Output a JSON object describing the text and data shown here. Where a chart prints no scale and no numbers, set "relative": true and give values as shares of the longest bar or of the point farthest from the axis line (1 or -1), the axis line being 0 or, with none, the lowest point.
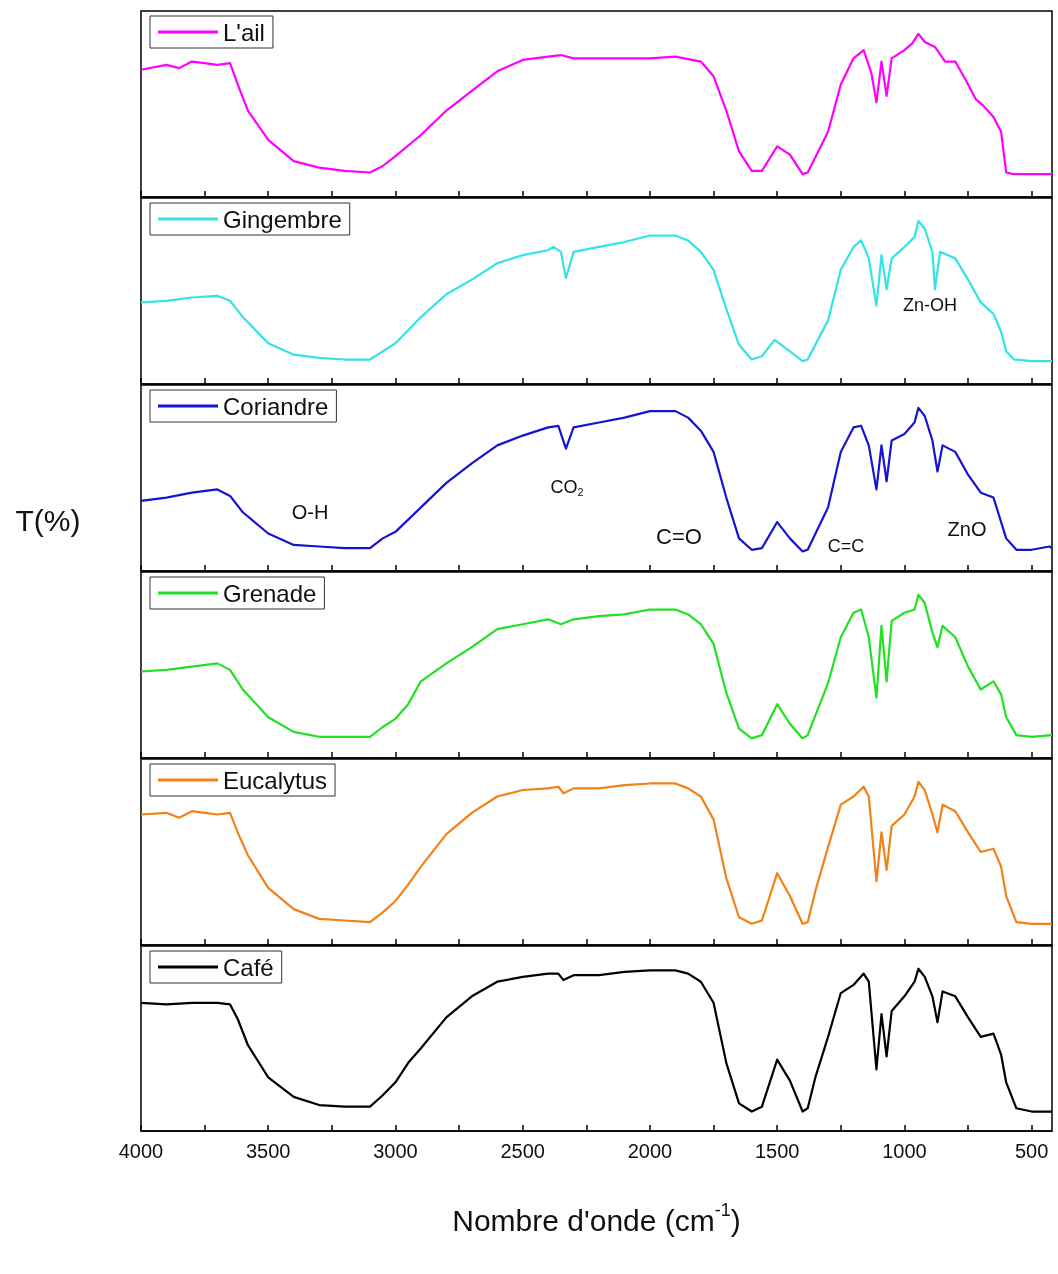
{
  "chart_data": [
    {
      "type": "line",
      "relative": true,
      "legend": "top left",
      "grid": false,
      "tick_labels": false,
      "xlim": [
        4000,
        420
      ],
      "xticks": [
        4000,
        {
          "value": 3750,
          "label": null
        },
        3500,
        {
          "value": 3250,
          "label": null
        },
        3000,
        {
          "value": 2750,
          "label": null
        },
        2500,
        {
          "value": 2250,
          "label": null
        },
        2000,
        {
          "value": 1750,
          "label": null
        },
        1500,
        {
          "value": 1250,
          "label": null
        },
        1000,
        {
          "value": 750,
          "label": null
        },
        500
      ],
      "x": [
        4000,
        3900,
        3850,
        3800,
        3750,
        3700,
        3650,
        3620,
        3580,
        3500,
        3400,
        3300,
        3200,
        3100,
        3050,
        3000,
        2900,
        2800,
        2700,
        2600,
        2500,
        2400,
        2350,
        2300,
        2200,
        2100,
        2000,
        1900,
        1800,
        1750,
        1700,
        1650,
        1600,
        1560,
        1500,
        1450,
        1400,
        1380,
        1300,
        1250,
        1200,
        1160,
        1130,
        1110,
        1090,
        1070,
        1050,
        1000,
        970,
        945,
        920,
        880,
        840,
        800,
        760,
        720,
        690,
        650,
        620,
        600,
        570,
        500,
        420
      ],
      "series": [
        {
          "name": "L'ail",
          "color": "#ff00ff",
          "values": [
            0.78,
            0.81,
            0.79,
            0.83,
            0.82,
            0.81,
            0.82,
            0.69,
            0.53,
            0.35,
            0.22,
            0.18,
            0.16,
            0.15,
            0.19,
            0.25,
            0.38,
            0.53,
            0.65,
            0.77,
            0.84,
            0.86,
            0.87,
            0.85,
            0.85,
            0.85,
            0.85,
            0.86,
            0.83,
            0.74,
            0.53,
            0.28,
            0.16,
            0.16,
            0.31,
            0.26,
            0.14,
            0.15,
            0.4,
            0.69,
            0.85,
            0.9,
            0.76,
            0.58,
            0.83,
            0.62,
            0.85,
            0.9,
            0.94,
            1,
            0.95,
            0.92,
            0.83,
            0.83,
            0.72,
            0.6,
            0.56,
            0.49,
            0.4,
            0.15,
            0.14,
            0.14,
            0.14
          ]
        }
      ]
    },
    {
      "type": "line",
      "relative": true,
      "legend": "top left",
      "grid": false,
      "tick_labels": false,
      "xlim": [
        4000,
        420
      ],
      "xticks": [
        4000,
        {
          "value": 3750,
          "label": null
        },
        3500,
        {
          "value": 3250,
          "label": null
        },
        3000,
        {
          "value": 2750,
          "label": null
        },
        2500,
        {
          "value": 2250,
          "label": null
        },
        2000,
        {
          "value": 1750,
          "label": null
        },
        1500,
        {
          "value": 1250,
          "label": null
        },
        1000,
        {
          "value": 750,
          "label": null
        },
        500
      ],
      "annotations": [
        "Zn-OH"
      ],
      "x": [
        4000,
        3900,
        3800,
        3700,
        3650,
        3600,
        3500,
        3400,
        3300,
        3200,
        3100,
        3050,
        3000,
        2900,
        2800,
        2700,
        2600,
        2500,
        2400,
        2380,
        2350,
        2330,
        2300,
        2200,
        2100,
        2000,
        1900,
        1850,
        1800,
        1750,
        1700,
        1650,
        1600,
        1560,
        1510,
        1450,
        1400,
        1380,
        1300,
        1250,
        1200,
        1170,
        1140,
        1110,
        1090,
        1070,
        1050,
        1000,
        960,
        945,
        920,
        890,
        880,
        860,
        800,
        750,
        700,
        650,
        620,
        600,
        570,
        500,
        420
      ],
      "series": [
        {
          "name": "Gingembre",
          "color": "#33e3e6",
          "values": [
            0.5,
            0.51,
            0.53,
            0.54,
            0.51,
            0.41,
            0.25,
            0.18,
            0.16,
            0.15,
            0.15,
            0.2,
            0.25,
            0.41,
            0.55,
            0.64,
            0.74,
            0.79,
            0.82,
            0.84,
            0.81,
            0.65,
            0.81,
            0.84,
            0.87,
            0.91,
            0.91,
            0.88,
            0.81,
            0.7,
            0.46,
            0.24,
            0.15,
            0.17,
            0.27,
            0.2,
            0.14,
            0.15,
            0.39,
            0.7,
            0.84,
            0.88,
            0.77,
            0.48,
            0.79,
            0.58,
            0.77,
            0.84,
            0.9,
            1,
            0.95,
            0.81,
            0.58,
            0.81,
            0.77,
            0.64,
            0.5,
            0.43,
            0.32,
            0.2,
            0.15,
            0.14,
            0.14
          ]
        }
      ]
    },
    {
      "type": "line",
      "relative": true,
      "legend": "top left",
      "grid": false,
      "tick_labels": false,
      "ylabel": "T(%)",
      "xlim": [
        4000,
        420
      ],
      "xticks": [
        4000,
        {
          "value": 3750,
          "label": null
        },
        3500,
        {
          "value": 3250,
          "label": null
        },
        3000,
        {
          "value": 2750,
          "label": null
        },
        2500,
        {
          "value": 2250,
          "label": null
        },
        2000,
        {
          "value": 1750,
          "label": null
        },
        1500,
        {
          "value": 1250,
          "label": null
        },
        1000,
        {
          "value": 750,
          "label": null
        },
        500
      ],
      "annotations": [
        "O-H",
        "CO$_{2}$",
        "C=O",
        "C=C",
        "ZnO"
      ],
      "x": [
        4000,
        3900,
        3800,
        3700,
        3650,
        3600,
        3500,
        3400,
        3300,
        3200,
        3100,
        3050,
        3000,
        2900,
        2800,
        2700,
        2600,
        2500,
        2400,
        2360,
        2330,
        2300,
        2200,
        2100,
        2000,
        1900,
        1850,
        1800,
        1750,
        1700,
        1650,
        1600,
        1560,
        1500,
        1450,
        1400,
        1380,
        1300,
        1250,
        1200,
        1170,
        1140,
        1110,
        1090,
        1070,
        1050,
        1000,
        960,
        945,
        920,
        890,
        870,
        850,
        800,
        750,
        700,
        650,
        620,
        600,
        560,
        500,
        430,
        420
      ],
      "series": [
        {
          "name": "Coriandre",
          "color": "#1414d2",
          "values": [
            0.43,
            0.45,
            0.48,
            0.5,
            0.46,
            0.36,
            0.23,
            0.16,
            0.15,
            0.14,
            0.14,
            0.2,
            0.24,
            0.39,
            0.54,
            0.66,
            0.77,
            0.83,
            0.88,
            0.89,
            0.75,
            0.88,
            0.91,
            0.94,
            0.98,
            0.98,
            0.94,
            0.86,
            0.73,
            0.45,
            0.2,
            0.13,
            0.14,
            0.3,
            0.2,
            0.12,
            0.13,
            0.39,
            0.73,
            0.88,
            0.89,
            0.77,
            0.5,
            0.77,
            0.55,
            0.8,
            0.84,
            0.91,
            1,
            0.95,
            0.8,
            0.61,
            0.77,
            0.73,
            0.59,
            0.48,
            0.45,
            0.3,
            0.2,
            0.13,
            0.13,
            0.15,
            0.14
          ]
        }
      ]
    },
    {
      "type": "line",
      "relative": true,
      "legend": "top left",
      "grid": false,
      "tick_labels": false,
      "xlim": [
        4000,
        420
      ],
      "xticks": [
        4000,
        {
          "value": 3750,
          "label": null
        },
        3500,
        {
          "value": 3250,
          "label": null
        },
        3000,
        {
          "value": 2750,
          "label": null
        },
        2500,
        {
          "value": 2250,
          "label": null
        },
        2000,
        {
          "value": 1750,
          "label": null
        },
        1500,
        {
          "value": 1250,
          "label": null
        },
        1000,
        {
          "value": 750,
          "label": null
        },
        500
      ],
      "x": [
        4000,
        3900,
        3800,
        3700,
        3650,
        3600,
        3500,
        3400,
        3300,
        3200,
        3100,
        3050,
        3000,
        2950,
        2900,
        2800,
        2700,
        2600,
        2500,
        2400,
        2350,
        2300,
        2200,
        2100,
        2000,
        1900,
        1850,
        1800,
        1750,
        1700,
        1650,
        1600,
        1560,
        1500,
        1450,
        1400,
        1380,
        1350,
        1300,
        1250,
        1200,
        1170,
        1140,
        1110,
        1090,
        1070,
        1050,
        1000,
        960,
        945,
        920,
        890,
        870,
        850,
        800,
        750,
        700,
        650,
        620,
        600,
        560,
        500,
        420
      ],
      "series": [
        {
          "name": "Grenade",
          "color": "#22e022",
          "values": [
            0.53,
            0.54,
            0.56,
            0.58,
            0.54,
            0.42,
            0.25,
            0.16,
            0.13,
            0.13,
            0.13,
            0.19,
            0.24,
            0.33,
            0.47,
            0.58,
            0.68,
            0.79,
            0.82,
            0.85,
            0.82,
            0.85,
            0.87,
            0.88,
            0.91,
            0.91,
            0.88,
            0.82,
            0.7,
            0.4,
            0.18,
            0.12,
            0.14,
            0.33,
            0.21,
            0.12,
            0.14,
            0.26,
            0.46,
            0.74,
            0.89,
            0.91,
            0.74,
            0.37,
            0.81,
            0.47,
            0.84,
            0.89,
            0.91,
            1,
            0.95,
            0.77,
            0.68,
            0.81,
            0.74,
            0.56,
            0.42,
            0.47,
            0.39,
            0.25,
            0.14,
            0.13,
            0.14
          ]
        }
      ]
    },
    {
      "type": "line",
      "relative": true,
      "legend": "top left",
      "grid": false,
      "tick_labels": false,
      "xlim": [
        4000,
        420
      ],
      "xticks": [
        4000,
        {
          "value": 3750,
          "label": null
        },
        3500,
        {
          "value": 3250,
          "label": null
        },
        3000,
        {
          "value": 2750,
          "label": null
        },
        2500,
        {
          "value": 2250,
          "label": null
        },
        2000,
        {
          "value": 1750,
          "label": null
        },
        1500,
        {
          "value": 1250,
          "label": null
        },
        1000,
        {
          "value": 750,
          "label": null
        },
        500
      ],
      "x": [
        4000,
        3900,
        3850,
        3800,
        3750,
        3700,
        3650,
        3620,
        3580,
        3500,
        3400,
        3300,
        3200,
        3100,
        3050,
        3000,
        2950,
        2900,
        2800,
        2700,
        2600,
        2500,
        2400,
        2360,
        2340,
        2300,
        2200,
        2100,
        2000,
        1900,
        1850,
        1800,
        1750,
        1700,
        1650,
        1600,
        1560,
        1500,
        1450,
        1400,
        1380,
        1350,
        1300,
        1250,
        1200,
        1160,
        1140,
        1110,
        1090,
        1070,
        1050,
        1000,
        960,
        945,
        920,
        890,
        870,
        850,
        800,
        750,
        700,
        650,
        620,
        600,
        560,
        500,
        420
      ],
      "series": [
        {
          "name": "Eucalytus",
          "color": "#f08218",
          "values": [
            0.8,
            0.81,
            0.78,
            0.82,
            0.81,
            0.8,
            0.81,
            0.69,
            0.55,
            0.35,
            0.22,
            0.16,
            0.15,
            0.14,
            0.2,
            0.27,
            0.37,
            0.48,
            0.68,
            0.81,
            0.91,
            0.95,
            0.96,
            0.97,
            0.93,
            0.96,
            0.96,
            0.98,
            0.99,
            0.99,
            0.96,
            0.91,
            0.77,
            0.41,
            0.17,
            0.13,
            0.15,
            0.44,
            0.3,
            0.13,
            0.14,
            0.33,
            0.6,
            0.86,
            0.91,
            0.97,
            0.91,
            0.39,
            0.69,
            0.46,
            0.73,
            0.8,
            0.91,
            1,
            0.95,
            0.8,
            0.69,
            0.86,
            0.82,
            0.69,
            0.57,
            0.59,
            0.48,
            0.3,
            0.14,
            0.13,
            0.13
          ]
        }
      ]
    },
    {
      "type": "line",
      "relative": true,
      "legend": "top left",
      "grid": false,
      "tick_labels": "x",
      "xlabel": "Nombre d'onde (cm$^{-1}$)",
      "xlim": [
        4000,
        420
      ],
      "xticks": [
        4000,
        {
          "value": 3750,
          "label": null
        },
        3500,
        {
          "value": 3250,
          "label": null
        },
        3000,
        {
          "value": 2750,
          "label": null
        },
        2500,
        {
          "value": 2250,
          "label": null
        },
        2000,
        {
          "value": 1750,
          "label": null
        },
        1500,
        {
          "value": 1250,
          "label": null
        },
        1000,
        {
          "value": 750,
          "label": null
        },
        500
      ],
      "x": [
        4000,
        3900,
        3800,
        3700,
        3650,
        3620,
        3580,
        3500,
        3400,
        3300,
        3200,
        3100,
        3050,
        3000,
        2950,
        2900,
        2800,
        2700,
        2600,
        2500,
        2400,
        2360,
        2340,
        2300,
        2200,
        2100,
        2000,
        1900,
        1850,
        1800,
        1750,
        1700,
        1650,
        1600,
        1560,
        1500,
        1450,
        1400,
        1380,
        1350,
        1300,
        1250,
        1200,
        1160,
        1140,
        1110,
        1090,
        1070,
        1050,
        1000,
        960,
        945,
        920,
        890,
        870,
        850,
        800,
        750,
        700,
        650,
        620,
        600,
        560,
        500,
        420
      ],
      "series": [
        {
          "name": "Café",
          "color": "#000000",
          "values": [
            0.79,
            0.78,
            0.79,
            0.79,
            0.78,
            0.69,
            0.53,
            0.33,
            0.21,
            0.16,
            0.15,
            0.15,
            0.22,
            0.3,
            0.42,
            0.51,
            0.7,
            0.83,
            0.92,
            0.95,
            0.97,
            0.97,
            0.93,
            0.96,
            0.96,
            0.98,
            0.99,
            0.99,
            0.97,
            0.92,
            0.79,
            0.42,
            0.17,
            0.12,
            0.15,
            0.44,
            0.31,
            0.12,
            0.14,
            0.33,
            0.58,
            0.85,
            0.9,
            0.97,
            0.92,
            0.38,
            0.72,
            0.46,
            0.74,
            0.83,
            0.92,
            1,
            0.95,
            0.83,
            0.67,
            0.86,
            0.83,
            0.7,
            0.58,
            0.6,
            0.47,
            0.3,
            0.14,
            0.12,
            0.12
          ]
        }
      ]
    }
  ]
}
